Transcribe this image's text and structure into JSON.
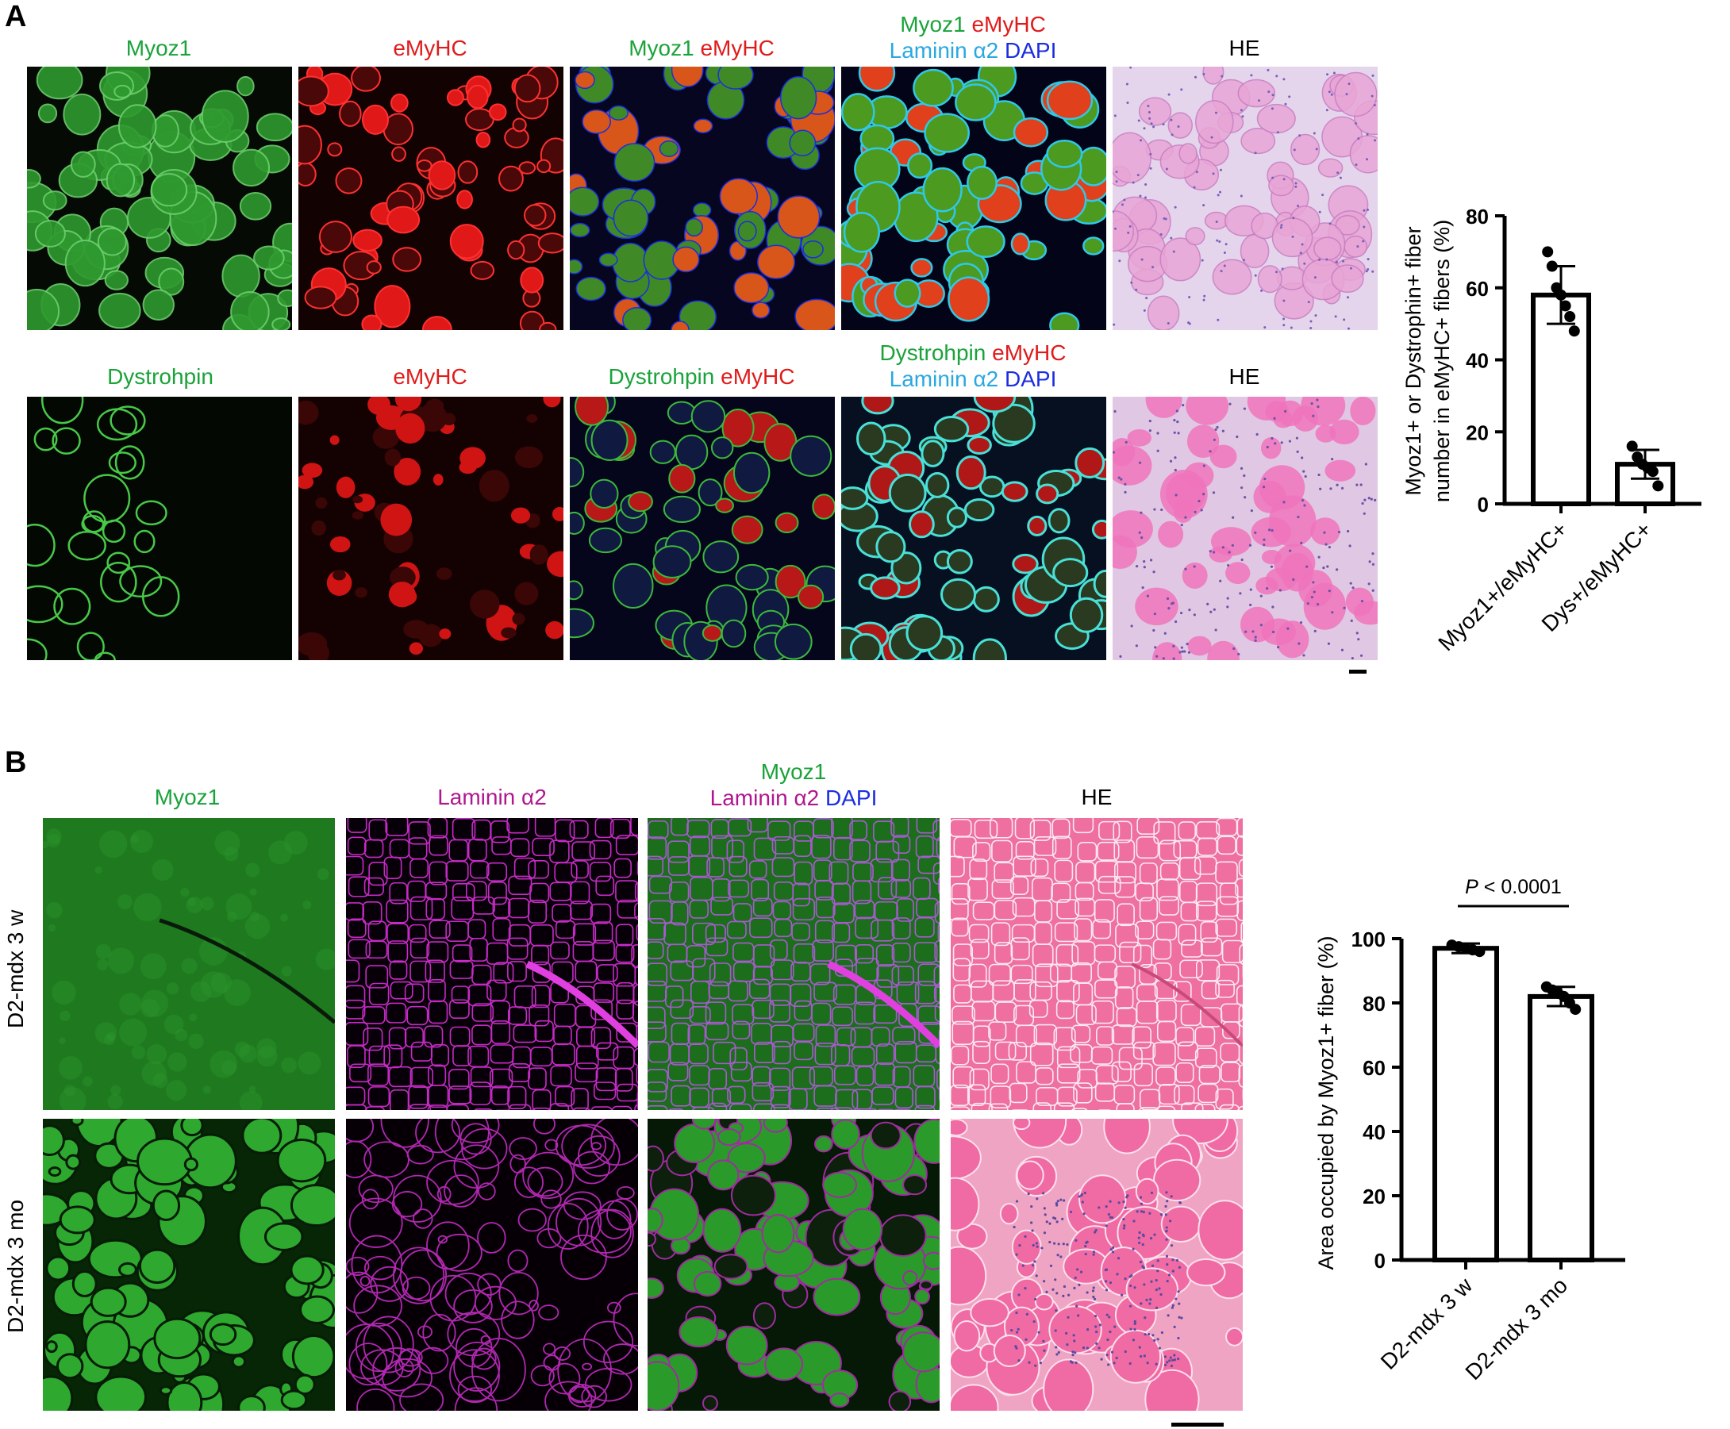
{
  "panelA": {
    "letter": "A",
    "row1": [
      {
        "parts": [
          {
            "t": "Myoz1",
            "c": "g"
          }
        ]
      },
      {
        "parts": [
          {
            "t": "eMyHC",
            "c": "r"
          }
        ]
      },
      {
        "parts": [
          {
            "t": "Myoz1 ",
            "c": "g"
          },
          {
            "t": "eMyHC",
            "c": "r"
          }
        ]
      },
      {
        "line1": [
          {
            "t": "Myoz1 ",
            "c": "g"
          },
          {
            "t": "eMyHC",
            "c": "r"
          }
        ],
        "line2": [
          {
            "t": "Laminin α2 ",
            "c": "c"
          },
          {
            "t": "DAPI",
            "c": "b"
          }
        ]
      },
      {
        "parts": [
          {
            "t": "HE",
            "c": "k"
          }
        ]
      }
    ],
    "row2": [
      {
        "parts": [
          {
            "t": "Dystrohpin",
            "c": "g"
          }
        ]
      },
      {
        "parts": [
          {
            "t": "eMyHC",
            "c": "r"
          }
        ]
      },
      {
        "parts": [
          {
            "t": "Dystrohpin ",
            "c": "g"
          },
          {
            "t": "eMyHC",
            "c": "r"
          }
        ]
      },
      {
        "line1": [
          {
            "t": "Dystrohpin ",
            "c": "g"
          },
          {
            "t": "eMyHC",
            "c": "r"
          }
        ],
        "line2": [
          {
            "t": "Laminin α2 ",
            "c": "c"
          },
          {
            "t": "DAPI",
            "c": "b"
          }
        ]
      },
      {
        "parts": [
          {
            "t": "HE",
            "c": "k"
          }
        ]
      }
    ]
  },
  "panelB": {
    "letter": "B",
    "columns": [
      {
        "parts": [
          {
            "t": "Myoz1",
            "c": "g"
          }
        ]
      },
      {
        "parts": [
          {
            "t": "Laminin α2",
            "c": "m"
          }
        ]
      },
      {
        "line1": [
          {
            "t": "Myoz1",
            "c": "g"
          }
        ],
        "line2": [
          {
            "t": "Laminin α2 ",
            "c": "m"
          },
          {
            "t": "DAPI",
            "c": "b"
          }
        ]
      },
      {
        "parts": [
          {
            "t": "HE",
            "c": "k"
          }
        ]
      }
    ],
    "rows": [
      "D2-mdx 3 w",
      "D2-mdx 3 mo"
    ]
  },
  "colors": {
    "green": "#1aa33a",
    "red": "#e01b1b",
    "cyan": "#29a8e0",
    "blue": "#1b2de0",
    "magenta": "#b0168e"
  },
  "chart_data": [
    {
      "type": "bar",
      "categories": [
        "Myoz1+/eMyHC+",
        "Dys+/eMyHC+"
      ],
      "values": [
        58,
        11
      ],
      "error": [
        8,
        4
      ],
      "points": [
        [
          70,
          66,
          60,
          58,
          55,
          52,
          48
        ],
        [
          16,
          13,
          11,
          10,
          9,
          5
        ]
      ],
      "ylabel_lines": [
        "Myoz1+ or Dystrophin+ fiber",
        "number in eMyHC+ fibers (%)"
      ],
      "ylim": [
        0,
        80
      ],
      "yticks": [
        "0",
        "20",
        "40",
        "60",
        "80"
      ]
    },
    {
      "type": "bar",
      "categories": [
        "D2-mdx 3 w",
        "D2-mdx 3 mo"
      ],
      "values": [
        97,
        82
      ],
      "error": [
        1.5,
        3
      ],
      "points": [
        [
          98,
          97.5,
          97,
          96.5,
          96
        ],
        [
          85,
          84,
          83,
          82,
          80,
          78
        ]
      ],
      "ylabel": "Area occupied by Myoz1+ fiber (%)",
      "ylim": [
        0,
        100
      ],
      "yticks": [
        "0",
        "20",
        "40",
        "60",
        "80",
        "100"
      ],
      "annotation": {
        "p": "P",
        "rest": " < 0.0001"
      }
    }
  ]
}
